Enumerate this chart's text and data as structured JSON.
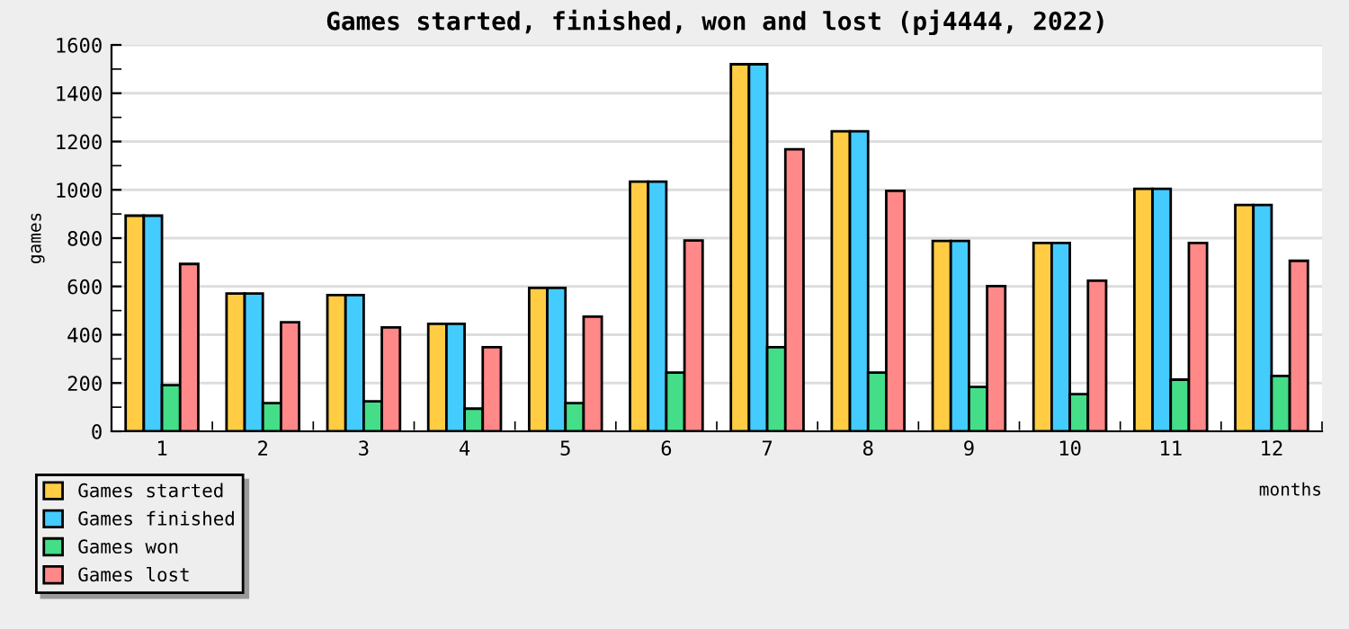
{
  "chart_data": {
    "type": "bar",
    "title": "Games started, finished, won and lost (pj4444, 2022)",
    "xlabel": "months",
    "ylabel": "games",
    "categories": [
      "1",
      "2",
      "3",
      "4",
      "5",
      "6",
      "7",
      "8",
      "9",
      "10",
      "11",
      "12"
    ],
    "series": [
      {
        "name": "Games started",
        "color": "#ffcc44",
        "values": [
          893,
          571,
          564,
          445,
          594,
          1034,
          1520,
          1242,
          788,
          780,
          1004,
          937
        ]
      },
      {
        "name": "Games finished",
        "color": "#44ccff",
        "values": [
          893,
          571,
          564,
          445,
          594,
          1034,
          1520,
          1242,
          788,
          780,
          1004,
          937
        ]
      },
      {
        "name": "Games won",
        "color": "#44dd88",
        "values": [
          191,
          117,
          124,
          94,
          117,
          243,
          348,
          243,
          184,
          154,
          214,
          229
        ]
      },
      {
        "name": "Games lost",
        "color": "#ff8888",
        "values": [
          693,
          452,
          430,
          348,
          475,
          790,
          1168,
          996,
          601,
          624,
          780,
          706
        ]
      }
    ],
    "ylim": [
      0,
      1600
    ],
    "yticks": [
      0,
      200,
      400,
      600,
      800,
      1000,
      1200,
      1400,
      1600
    ],
    "grid": "y",
    "legend": "bottom left"
  }
}
